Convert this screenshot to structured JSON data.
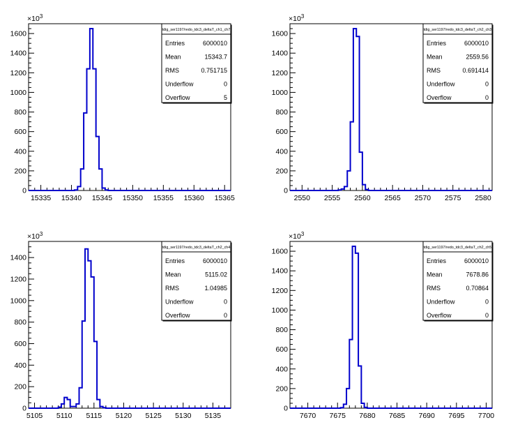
{
  "stat_labels": [
    "Entries",
    "Mean",
    "RMS",
    "Underflow",
    "Overflow"
  ],
  "multiplier": "×10",
  "multiplier_exp": "3",
  "chart_data": [
    {
      "type": "histogram",
      "title": "tdig_ser1197/redo_tdc3_deltaT_ch1_ch7",
      "stats": {
        "Entries": "6000010",
        "Mean": "15343.7",
        "RMS": "0.751715",
        "Underflow": "0",
        "Overflow": "5"
      },
      "xlim": [
        15333,
        15366
      ],
      "ylim": [
        0,
        1700
      ],
      "xticks": [
        15335,
        15340,
        15345,
        15350,
        15355,
        15360,
        15365
      ],
      "yticks": [
        0,
        200,
        400,
        600,
        800,
        1000,
        1200,
        1400,
        1600
      ],
      "bin_width": 0.5,
      "bins": [
        [
          15340.5,
          5
        ],
        [
          15341.0,
          40
        ],
        [
          15341.5,
          220
        ],
        [
          15342.0,
          790
        ],
        [
          15342.5,
          1240
        ],
        [
          15343.0,
          1650
        ],
        [
          15343.5,
          1240
        ],
        [
          15344.0,
          550
        ],
        [
          15344.5,
          220
        ],
        [
          15345.0,
          25
        ],
        [
          15345.5,
          5
        ]
      ],
      "baseline_range": [
        15333,
        15366
      ],
      "color": "#0000cc"
    },
    {
      "type": "histogram",
      "title": "tdig_ser1197/redo_tdc3_deltaT_ch2_ch3",
      "stats": {
        "Entries": "6000010",
        "Mean": "2559.56",
        "RMS": "0.691414",
        "Underflow": "0",
        "Overflow": "0"
      },
      "xlim": [
        2548,
        2581.5
      ],
      "ylim": [
        0,
        1700
      ],
      "xticks": [
        2550,
        2555,
        2560,
        2565,
        2570,
        2575,
        2580
      ],
      "yticks": [
        0,
        200,
        400,
        600,
        800,
        1000,
        1200,
        1400,
        1600
      ],
      "bin_width": 0.5,
      "bins": [
        [
          2556.0,
          5
        ],
        [
          2556.5,
          15
        ],
        [
          2557.0,
          40
        ],
        [
          2557.5,
          200
        ],
        [
          2558.0,
          700
        ],
        [
          2558.5,
          1650
        ],
        [
          2559.0,
          1570
        ],
        [
          2559.5,
          390
        ],
        [
          2560.0,
          60
        ],
        [
          2560.5,
          10
        ]
      ],
      "baseline_range": [
        2548,
        2581.5
      ],
      "color": "#0000cc"
    },
    {
      "type": "histogram",
      "title": "tdig_ser1197/redo_tdc3_deltaT_ch2_ch4",
      "stats": {
        "Entries": "6000010",
        "Mean": "5115.02",
        "RMS": "1.04985",
        "Underflow": "0",
        "Overflow": "0"
      },
      "xlim": [
        5104,
        5138
      ],
      "ylim": [
        0,
        1550
      ],
      "xticks": [
        5105,
        5110,
        5115,
        5120,
        5125,
        5130,
        5135
      ],
      "yticks": [
        0,
        200,
        400,
        600,
        800,
        1000,
        1200,
        1400
      ],
      "bin_width": 0.5,
      "bins": [
        [
          5109.0,
          10
        ],
        [
          5109.5,
          40
        ],
        [
          5110.0,
          100
        ],
        [
          5110.5,
          80
        ],
        [
          5111.0,
          15
        ],
        [
          5111.5,
          15
        ],
        [
          5112.0,
          40
        ],
        [
          5112.5,
          190
        ],
        [
          5113.0,
          810
        ],
        [
          5113.5,
          1480
        ],
        [
          5114.0,
          1370
        ],
        [
          5114.5,
          1220
        ],
        [
          5115.0,
          620
        ],
        [
          5115.5,
          80
        ],
        [
          5116.0,
          15
        ],
        [
          5116.5,
          5
        ]
      ],
      "baseline_range": [
        5104,
        5138
      ],
      "color": "#0000cc"
    },
    {
      "type": "histogram",
      "title": "tdig_ser1197/redo_tdc3_deltaT_ch2_ch5",
      "stats": {
        "Entries": "6000010",
        "Mean": "7678.86",
        "RMS": "0.70864",
        "Underflow": "0",
        "Overflow": "0"
      },
      "xlim": [
        7667,
        7701
      ],
      "ylim": [
        0,
        1700
      ],
      "xticks": [
        7670,
        7675,
        7680,
        7685,
        7690,
        7695,
        7700
      ],
      "yticks": [
        0,
        200,
        400,
        600,
        800,
        1000,
        1200,
        1400,
        1600
      ],
      "bin_width": 0.5,
      "bins": [
        [
          7675.5,
          5
        ],
        [
          7676.0,
          40
        ],
        [
          7676.5,
          200
        ],
        [
          7677.0,
          700
        ],
        [
          7677.5,
          1650
        ],
        [
          7678.0,
          1580
        ],
        [
          7678.5,
          430
        ],
        [
          7679.0,
          50
        ],
        [
          7679.5,
          8
        ]
      ],
      "baseline_range": [
        7667,
        7701
      ],
      "color": "#0000cc"
    }
  ]
}
